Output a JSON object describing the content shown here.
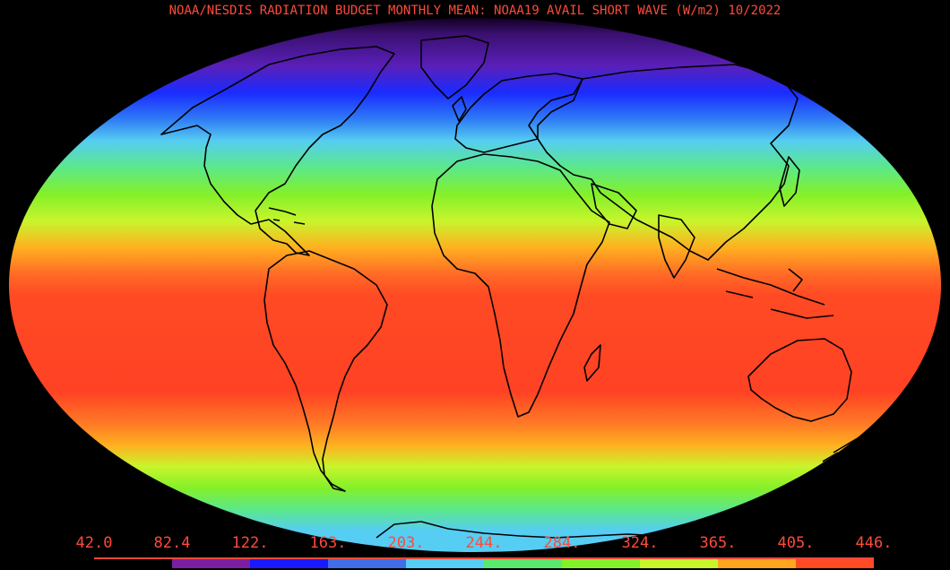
{
  "title": "NOAA/NESDIS RADIATION BUDGET MONTHLY MEAN:  NOAA19 AVAIL SHORT WAVE (W/m2) 10/2022",
  "colors": {
    "text": "#ff4a3a",
    "background": "#000000",
    "coastline": "#000000"
  },
  "legend": {
    "labels": [
      "42.0",
      "82.4",
      "122.",
      "163.",
      "203.",
      "244.",
      "284.",
      "324.",
      "365.",
      "405.",
      "446."
    ],
    "swatch_colors": [
      "#000000",
      "#7b1fa2",
      "#1a1aff",
      "#3f6ee8",
      "#56cdf2",
      "#5be86f",
      "#84f02a",
      "#c8f52c",
      "#ffa520",
      "#ff4a24"
    ]
  },
  "map": {
    "projection": "mollweide",
    "variable": "available short wave radiation",
    "bands": [
      {
        "at": 0.0,
        "color": "#120020"
      },
      {
        "at": 0.03,
        "color": "#3a1070"
      },
      {
        "at": 0.09,
        "color": "#5a1fb8"
      },
      {
        "at": 0.14,
        "color": "#1a2bff"
      },
      {
        "at": 0.19,
        "color": "#2f7cf5"
      },
      {
        "at": 0.23,
        "color": "#56cdf2"
      },
      {
        "at": 0.28,
        "color": "#5be88a"
      },
      {
        "at": 0.33,
        "color": "#84f02a"
      },
      {
        "at": 0.38,
        "color": "#c8f52c"
      },
      {
        "at": 0.43,
        "color": "#ffb020"
      },
      {
        "at": 0.48,
        "color": "#ff6a26"
      },
      {
        "at": 0.52,
        "color": "#ff4a24"
      },
      {
        "at": 0.7,
        "color": "#ff4224"
      },
      {
        "at": 0.76,
        "color": "#ff7a26"
      },
      {
        "at": 0.8,
        "color": "#ffb020"
      },
      {
        "at": 0.84,
        "color": "#c8f52c"
      },
      {
        "at": 0.88,
        "color": "#84f02a"
      },
      {
        "at": 0.92,
        "color": "#5be88a"
      },
      {
        "at": 0.96,
        "color": "#56cdf2"
      },
      {
        "at": 1.0,
        "color": "#56cdf2"
      }
    ]
  }
}
